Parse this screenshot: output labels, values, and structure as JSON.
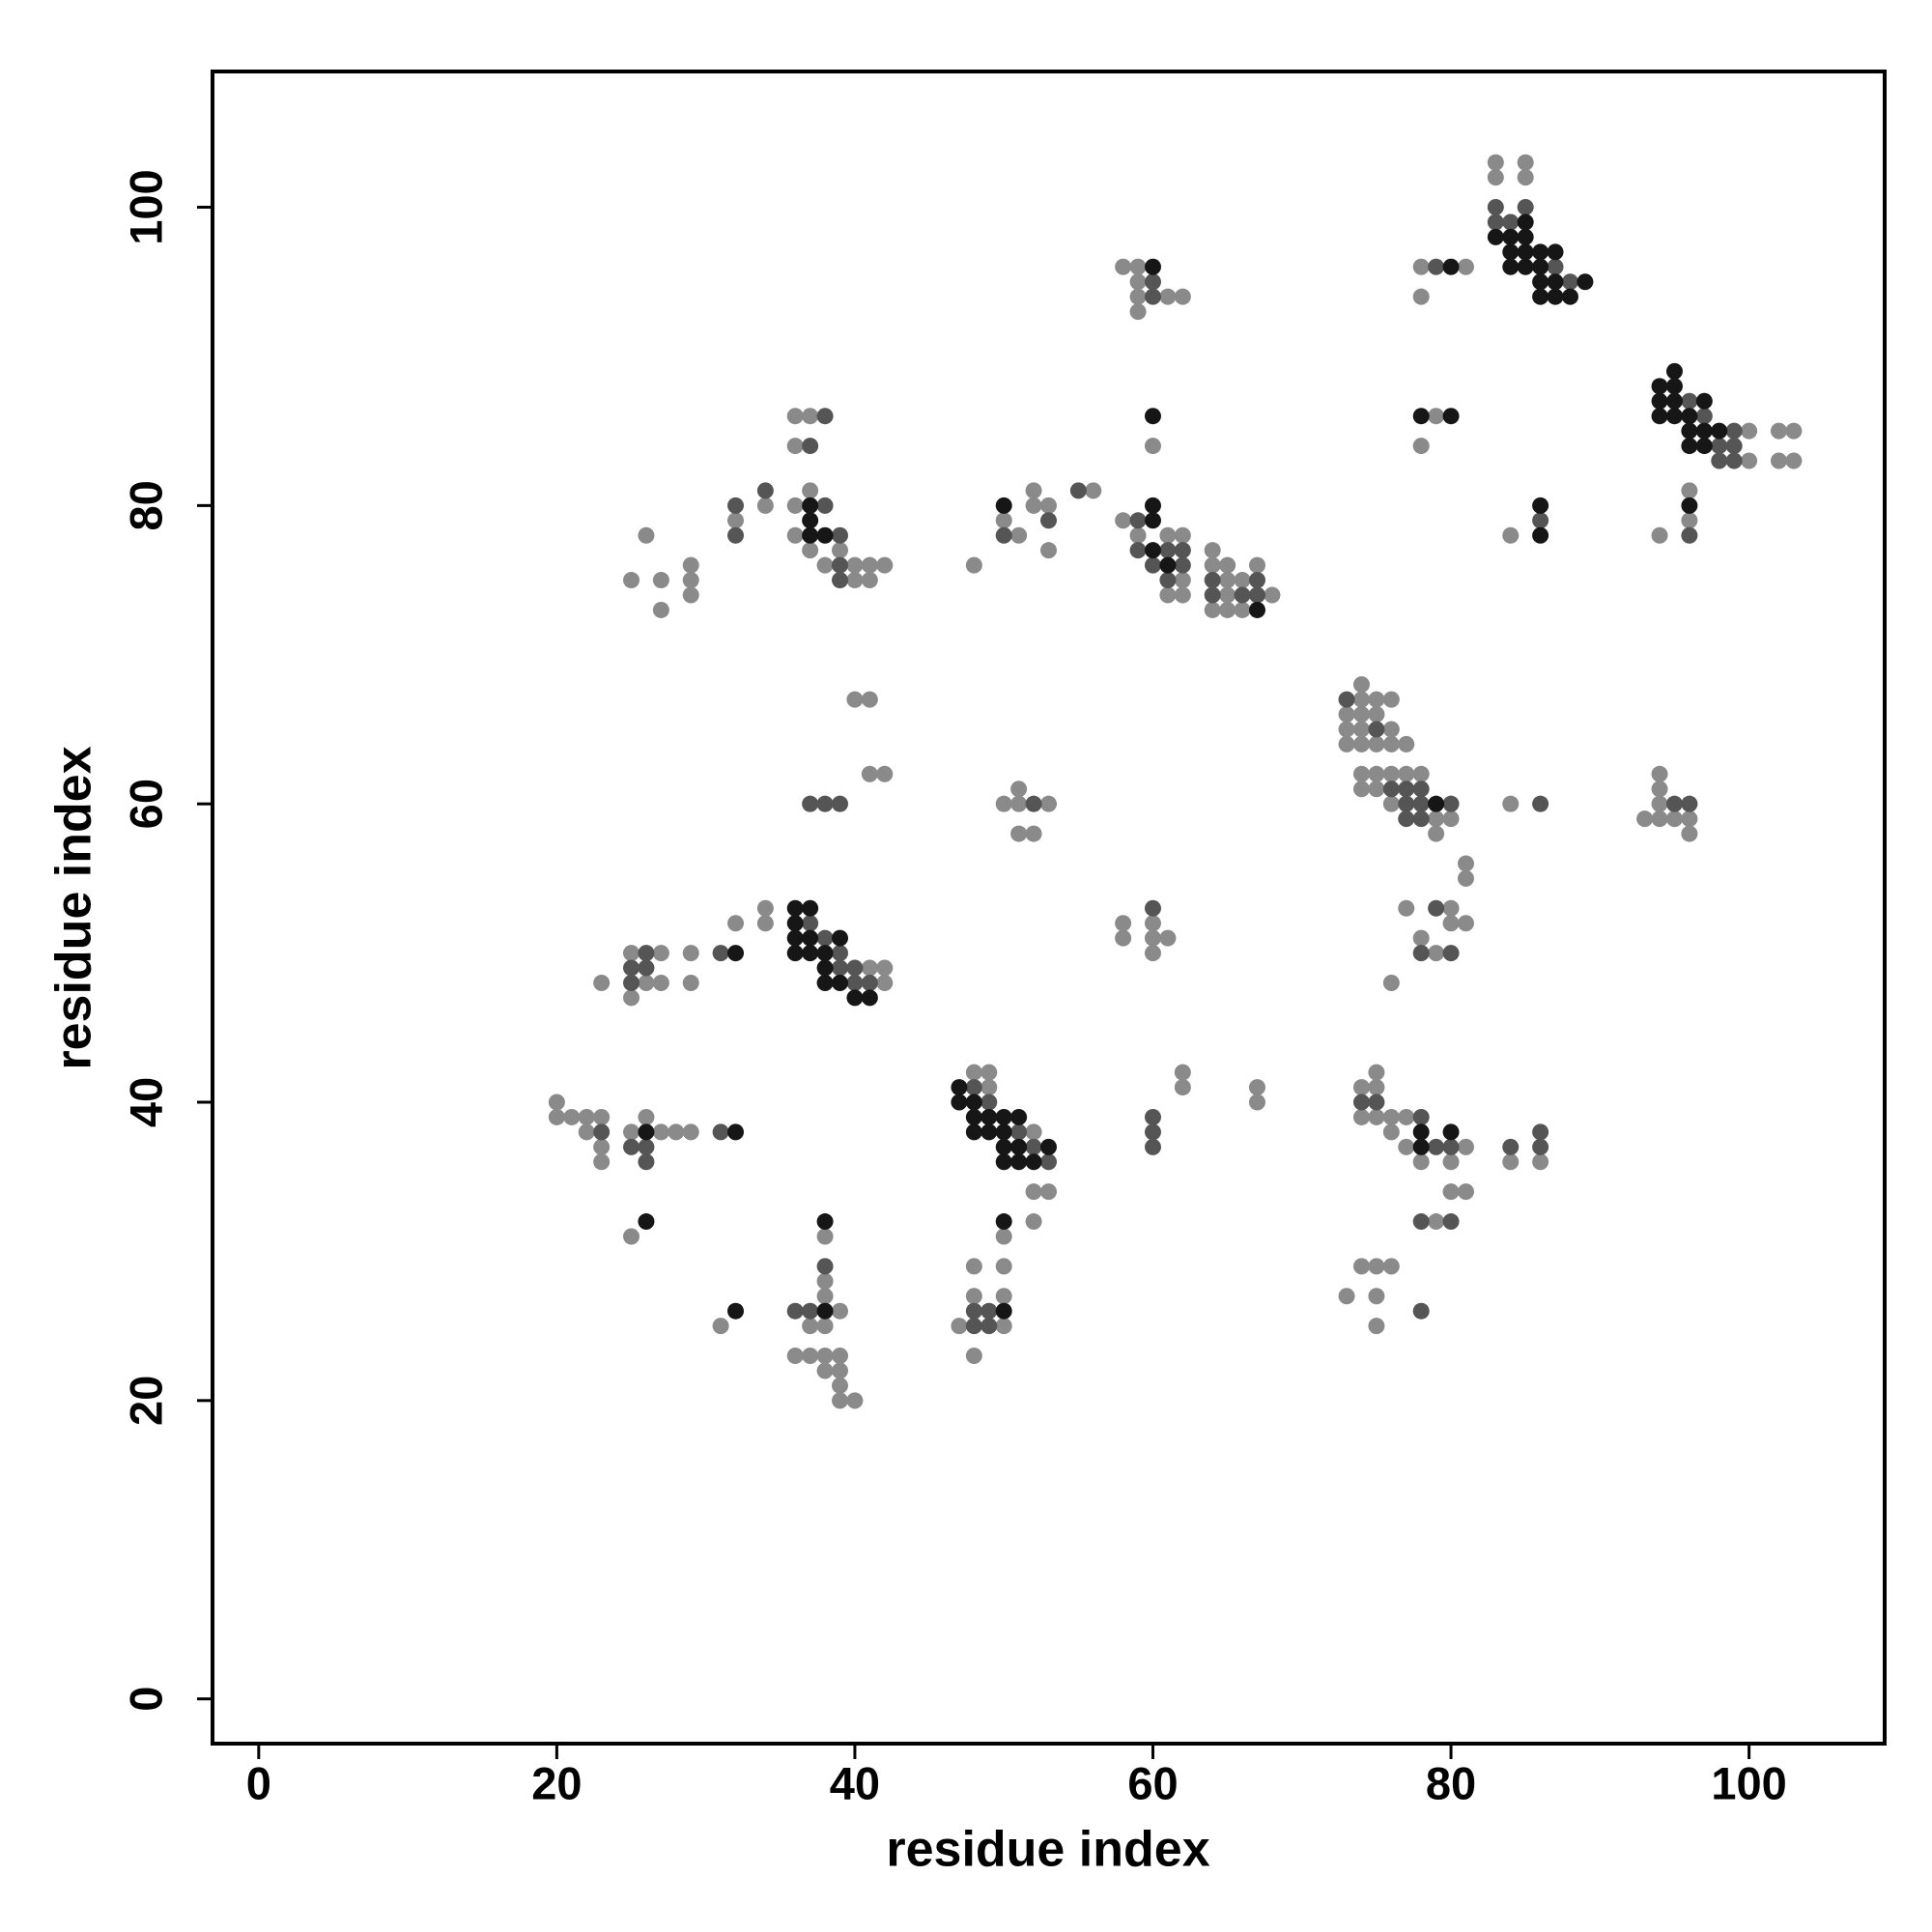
{
  "chart_data": {
    "type": "scatter",
    "xlabel": "residue index",
    "ylabel": "residue index",
    "xlim": [
      -3.1,
      109.1
    ],
    "ylim": [
      -3.0,
      109.1
    ],
    "xticks": [
      0,
      20,
      40,
      60,
      80,
      100
    ],
    "yticks": [
      0,
      20,
      40,
      60,
      80,
      100
    ],
    "series": [
      {
        "color": "#8a8a8a",
        "x": [
          83,
          85,
          83,
          85,
          78,
          81,
          78,
          79,
          78,
          84,
          100,
          100,
          102,
          103,
          102,
          103,
          94,
          96,
          96,
          58,
          59,
          59,
          59,
          61,
          62,
          59,
          60,
          58,
          59,
          61,
          62,
          62,
          61,
          62,
          64,
          64,
          65,
          65,
          66,
          67,
          65,
          68,
          64,
          65,
          66,
          56,
          50,
          51,
          52,
          52,
          53,
          53,
          48,
          36,
          37,
          36,
          37,
          34,
          36,
          32,
          36,
          37,
          39,
          38,
          40,
          41,
          42,
          40,
          41,
          26,
          25,
          27,
          29,
          29,
          27,
          29,
          40,
          41,
          41,
          42,
          50,
          51,
          51,
          53,
          51,
          52,
          74,
          74,
          75,
          76,
          73,
          74,
          75,
          73,
          74,
          76,
          73,
          74,
          75,
          76,
          77,
          74,
          75,
          76,
          77,
          78,
          74,
          75,
          76,
          79,
          80,
          79,
          84,
          81,
          81,
          77,
          80,
          78,
          80,
          81,
          79,
          76,
          94,
          94,
          93,
          94,
          95,
          96,
          96,
          94,
          58,
          58,
          60,
          60,
          61,
          60,
          34,
          34,
          32,
          41,
          42,
          42,
          25,
          27,
          29,
          26,
          27,
          23,
          29,
          25,
          62,
          62,
          67,
          67,
          48,
          49,
          49,
          52,
          52,
          53,
          52,
          20,
          20,
          21,
          22,
          23,
          22,
          25,
          27,
          28,
          29,
          23,
          23,
          26,
          75,
          75,
          74,
          74,
          75,
          76,
          77,
          76,
          77,
          81,
          78,
          80,
          80,
          81,
          84,
          86,
          79,
          25,
          38,
          38,
          38,
          39,
          37,
          38,
          36,
          37,
          38,
          39,
          38,
          39,
          39,
          39,
          40,
          31,
          48,
          50,
          48,
          50,
          47,
          50,
          48,
          50,
          73,
          74,
          75,
          76,
          75,
          75
        ],
        "values": [
          103,
          103,
          102,
          102,
          96,
          96,
          94,
          86,
          84,
          78,
          85,
          83,
          85,
          85,
          83,
          83,
          78,
          81,
          79,
          96,
          96,
          95,
          94,
          94,
          94,
          93,
          84,
          79,
          78,
          78,
          78,
          75,
          74,
          74,
          77,
          76,
          76,
          75,
          75,
          76,
          74,
          74,
          73,
          73,
          73,
          81,
          79,
          78,
          81,
          80,
          80,
          77,
          76,
          86,
          86,
          84,
          81,
          80,
          80,
          79,
          78,
          77,
          77,
          76,
          76,
          76,
          76,
          75,
          75,
          78,
          75,
          75,
          76,
          75,
          73,
          74,
          67,
          67,
          62,
          62,
          60,
          61,
          60,
          60,
          58,
          58,
          68,
          67,
          67,
          67,
          66,
          66,
          66,
          65,
          65,
          65,
          64,
          64,
          64,
          64,
          64,
          62,
          62,
          62,
          62,
          62,
          61,
          61,
          60,
          59,
          59,
          58,
          60,
          56,
          55,
          53,
          53,
          51,
          52,
          52,
          50,
          48,
          62,
          61,
          59,
          59,
          59,
          59,
          58,
          60,
          52,
          51,
          52,
          51,
          51,
          50,
          53,
          52,
          52,
          49,
          49,
          48,
          50,
          50,
          50,
          48,
          48,
          48,
          48,
          47,
          42,
          41,
          41,
          40,
          42,
          42,
          41,
          38,
          34,
          34,
          32,
          40,
          39,
          39,
          39,
          39,
          38,
          38,
          38,
          38,
          38,
          37,
          36,
          39,
          42,
          41,
          41,
          39,
          39,
          39,
          39,
          38,
          37,
          37,
          36,
          36,
          34,
          34,
          36,
          36,
          32,
          31,
          31,
          28,
          27,
          26,
          25,
          25,
          23,
          23,
          23,
          23,
          22,
          22,
          21,
          20,
          20,
          25,
          29,
          29,
          27,
          27,
          25,
          25,
          23,
          31,
          27,
          29,
          29,
          29,
          27,
          25
        ]
      },
      {
        "color": "#555555",
        "x": [
          83,
          85,
          83,
          84,
          87,
          88,
          79,
          86,
          96,
          97,
          99,
          98,
          99,
          98,
          99,
          96,
          60,
          60,
          59,
          59,
          61,
          62,
          60,
          62,
          61,
          64,
          64,
          66,
          67,
          67,
          55,
          50,
          53,
          38,
          37,
          34,
          32,
          38,
          32,
          39,
          39,
          39,
          37,
          38,
          39,
          52,
          73,
          75,
          76,
          77,
          78,
          77,
          78,
          80,
          77,
          78,
          86,
          79,
          78,
          80,
          95,
          96,
          60,
          37,
          38,
          31,
          39,
          39,
          40,
          40,
          41,
          26,
          25,
          26,
          25,
          48,
          49,
          51,
          52,
          53,
          60,
          60,
          60,
          23,
          31,
          25,
          26,
          26,
          74,
          75,
          78,
          79,
          80,
          84,
          86,
          86,
          78,
          80,
          38,
          36,
          37,
          48,
          49,
          48,
          49,
          78
        ],
        "values": [
          100,
          100,
          99,
          99,
          96,
          95,
          96,
          79,
          87,
          86,
          85,
          84,
          84,
          83,
          83,
          78,
          95,
          94,
          79,
          77,
          77,
          77,
          76,
          76,
          75,
          75,
          74,
          74,
          74,
          75,
          81,
          78,
          79,
          86,
          84,
          81,
          80,
          80,
          78,
          78,
          76,
          75,
          60,
          60,
          60,
          60,
          67,
          65,
          61,
          61,
          61,
          60,
          60,
          60,
          59,
          59,
          60,
          53,
          50,
          50,
          60,
          60,
          53,
          52,
          51,
          50,
          50,
          49,
          49,
          48,
          48,
          50,
          49,
          49,
          48,
          41,
          40,
          38,
          37,
          36,
          39,
          38,
          37,
          38,
          38,
          37,
          37,
          36,
          40,
          40,
          39,
          37,
          37,
          37,
          38,
          37,
          32,
          32,
          29,
          26,
          26,
          25,
          25,
          26,
          26,
          26
        ]
      },
      {
        "color": "#161616",
        "x": [
          85,
          83,
          84,
          85,
          84,
          85,
          86,
          87,
          84,
          85,
          86,
          86,
          87,
          89,
          86,
          87,
          88,
          80,
          78,
          80,
          86,
          86,
          95,
          94,
          95,
          94,
          95,
          97,
          94,
          95,
          96,
          96,
          97,
          98,
          96,
          97,
          96,
          60,
          60,
          60,
          60,
          60,
          61,
          67,
          50,
          37,
          37,
          37,
          38,
          79,
          36,
          37,
          36,
          36,
          37,
          39,
          32,
          36,
          37,
          38,
          38,
          38,
          39,
          40,
          41,
          47,
          47,
          48,
          48,
          49,
          50,
          51,
          48,
          49,
          50,
          50,
          51,
          53,
          50,
          51,
          52,
          26,
          32,
          78,
          78,
          80,
          26,
          38,
          38,
          32,
          50,
          50
        ],
        "values": [
          99,
          98,
          98,
          98,
          97,
          97,
          97,
          97,
          96,
          96,
          96,
          95,
          95,
          95,
          94,
          94,
          94,
          96,
          86,
          86,
          80,
          78,
          89,
          88,
          88,
          87,
          87,
          87,
          86,
          86,
          86,
          85,
          85,
          85,
          84,
          84,
          80,
          96,
          86,
          80,
          79,
          77,
          76,
          73,
          80,
          80,
          79,
          78,
          78,
          60,
          53,
          53,
          52,
          51,
          51,
          51,
          50,
          50,
          50,
          50,
          49,
          48,
          48,
          47,
          47,
          41,
          40,
          40,
          39,
          39,
          39,
          39,
          38,
          38,
          38,
          37,
          37,
          37,
          36,
          36,
          36,
          38,
          38,
          38,
          37,
          38,
          32,
          32,
          26,
          26,
          26,
          32
        ]
      }
    ]
  }
}
